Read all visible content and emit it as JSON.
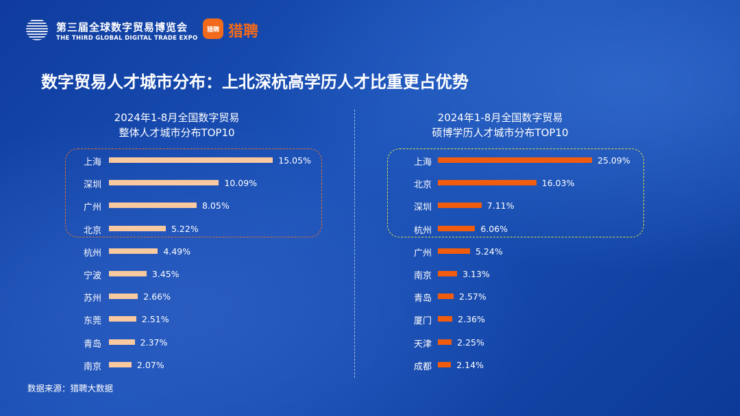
{
  "header": {
    "expo_cn": "第三届全球数字贸易博览会",
    "expo_en": "THE THIRD GLOBAL DIGITAL TRADE EXPO",
    "liepin_icon": "猎聘",
    "liepin_name": "猎聘"
  },
  "title": "数字贸易人才城市分布：上北深杭高学历人才比重更占优势",
  "colors": {
    "left_bar": "#f9c9a0",
    "right_bar": "#f25c0f",
    "left_box": "#e0702a",
    "right_box": "#d6e04a"
  },
  "chart_data": [
    {
      "type": "bar",
      "orientation": "horizontal",
      "title": [
        "2024年1-8月全国数字贸易",
        "整体人才城市分布TOP10"
      ],
      "categories": [
        "上海",
        "深圳",
        "广州",
        "北京",
        "杭州",
        "宁波",
        "苏州",
        "东莞",
        "青岛",
        "南京"
      ],
      "values": [
        15.05,
        10.09,
        8.05,
        5.22,
        4.49,
        3.45,
        2.66,
        2.51,
        2.37,
        2.07
      ],
      "labels": [
        "15.05%",
        "10.09%",
        "8.05%",
        "5.22%",
        "4.49%",
        "3.45%",
        "2.66%",
        "2.51%",
        "2.37%",
        "2.07%"
      ],
      "unit": "%",
      "highlighted_top": 4
    },
    {
      "type": "bar",
      "orientation": "horizontal",
      "title": [
        "2024年1-8月全国数字贸易",
        "硕博学历人才城市分布TOP10"
      ],
      "categories": [
        "上海",
        "北京",
        "深圳",
        "杭州",
        "广州",
        "南京",
        "青岛",
        "厦门",
        "天津",
        "成都"
      ],
      "values": [
        25.09,
        16.03,
        7.11,
        6.06,
        5.24,
        3.13,
        2.57,
        2.36,
        2.25,
        2.14
      ],
      "labels": [
        "25.09%",
        "16.03%",
        "7.11%",
        "6.06%",
        "5.24%",
        "3.13%",
        "2.57%",
        "2.36%",
        "2.25%",
        "2.14%"
      ],
      "unit": "%",
      "highlighted_top": 4
    }
  ],
  "source": "数据来源：猎聘大数据"
}
